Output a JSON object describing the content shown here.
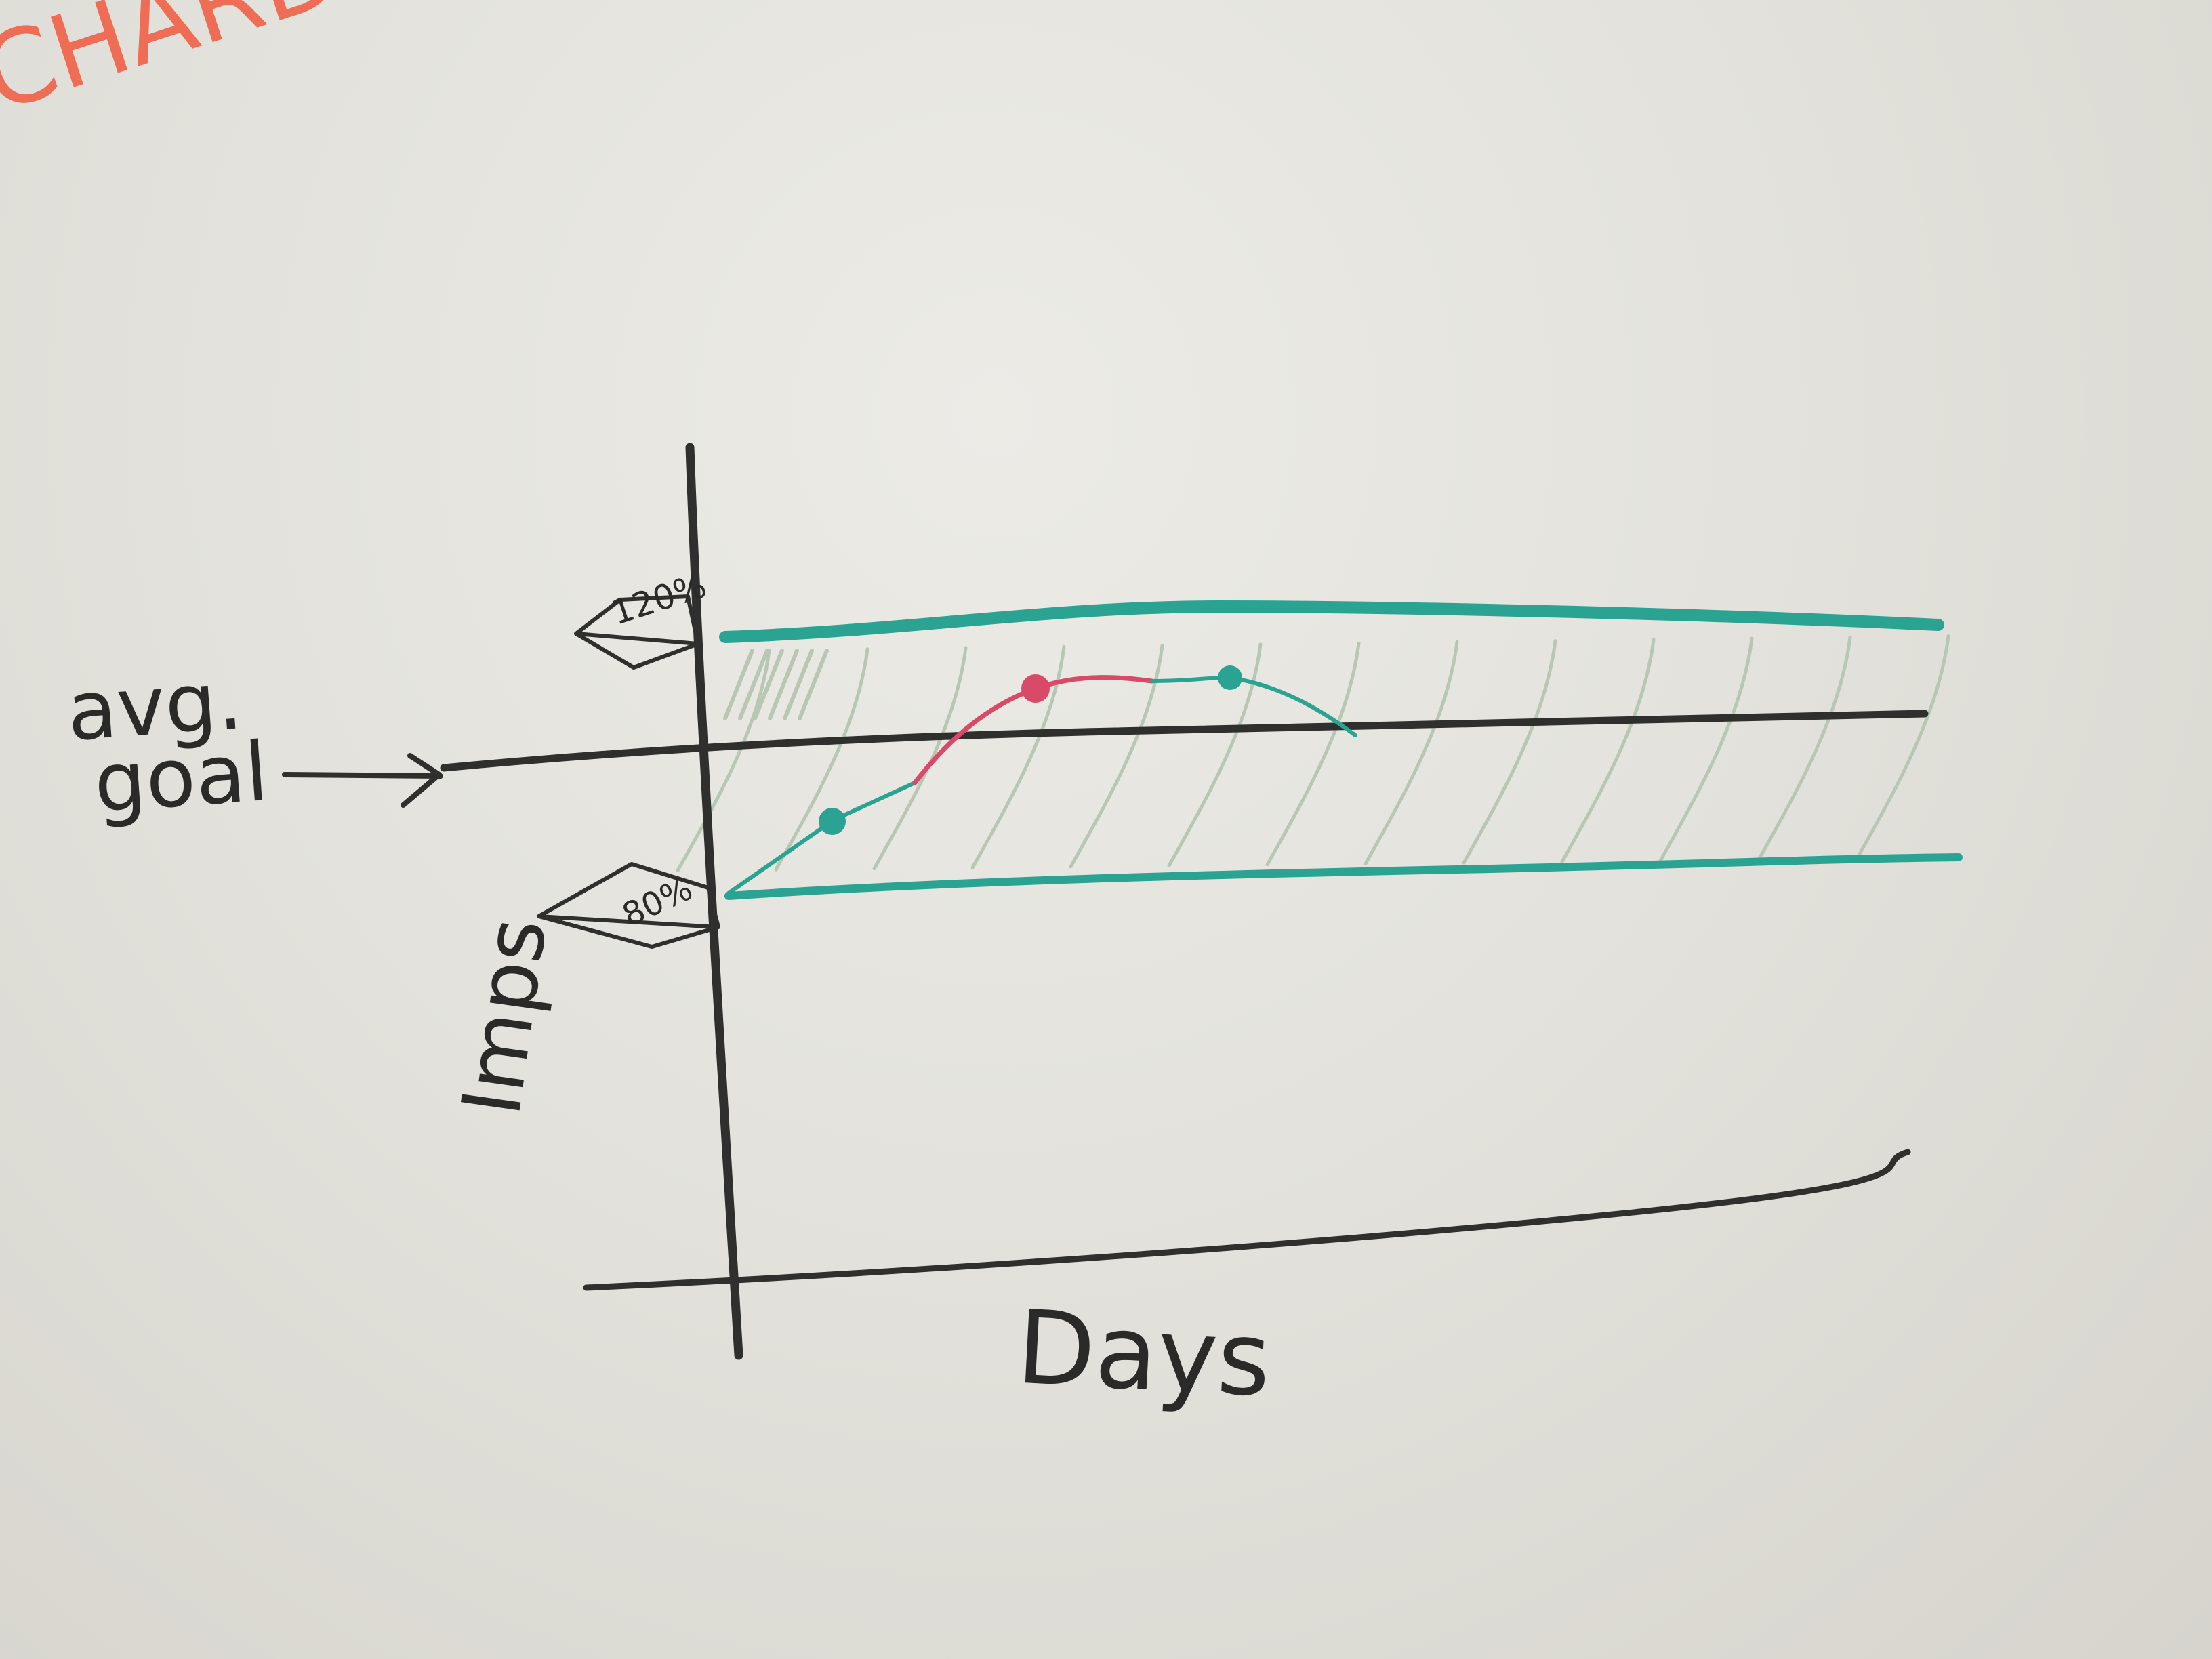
{
  "scene": {
    "surface": "whiteboard",
    "colors": {
      "board": "#e6e5df",
      "black_marker": "#2f2f2d",
      "teal_marker": "#2aa392",
      "red_marker": "#d94a68",
      "orange_marker": "#ef6d54",
      "hatch_green": "#b8c7b4"
    }
  },
  "labels": {
    "corner_scrawl": "CHARD",
    "avg_line1": "avg.",
    "avg_line2": "goal",
    "y_axis": "Imps",
    "x_axis": "Days",
    "upper_bound": "120%",
    "lower_bound": "80%"
  }
}
